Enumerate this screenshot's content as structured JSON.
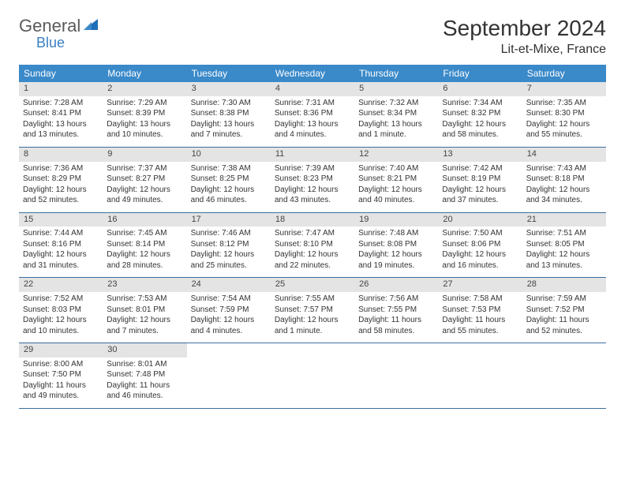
{
  "logo": {
    "main": "General",
    "sub": "Blue"
  },
  "title": "September 2024",
  "location": "Lit-et-Mixe, France",
  "colors": {
    "header_bg": "#3a89c9",
    "header_text": "#ffffff",
    "daynum_bg": "#e4e4e4",
    "text": "#333333",
    "row_border": "#3a6fa0",
    "logo_sub": "#3a7fc4"
  },
  "weekdays": [
    "Sunday",
    "Monday",
    "Tuesday",
    "Wednesday",
    "Thursday",
    "Friday",
    "Saturday"
  ],
  "weeks": [
    [
      {
        "day": "1",
        "sunrise": "Sunrise: 7:28 AM",
        "sunset": "Sunset: 8:41 PM",
        "daylight1": "Daylight: 13 hours",
        "daylight2": "and 13 minutes."
      },
      {
        "day": "2",
        "sunrise": "Sunrise: 7:29 AM",
        "sunset": "Sunset: 8:39 PM",
        "daylight1": "Daylight: 13 hours",
        "daylight2": "and 10 minutes."
      },
      {
        "day": "3",
        "sunrise": "Sunrise: 7:30 AM",
        "sunset": "Sunset: 8:38 PM",
        "daylight1": "Daylight: 13 hours",
        "daylight2": "and 7 minutes."
      },
      {
        "day": "4",
        "sunrise": "Sunrise: 7:31 AM",
        "sunset": "Sunset: 8:36 PM",
        "daylight1": "Daylight: 13 hours",
        "daylight2": "and 4 minutes."
      },
      {
        "day": "5",
        "sunrise": "Sunrise: 7:32 AM",
        "sunset": "Sunset: 8:34 PM",
        "daylight1": "Daylight: 13 hours",
        "daylight2": "and 1 minute."
      },
      {
        "day": "6",
        "sunrise": "Sunrise: 7:34 AM",
        "sunset": "Sunset: 8:32 PM",
        "daylight1": "Daylight: 12 hours",
        "daylight2": "and 58 minutes."
      },
      {
        "day": "7",
        "sunrise": "Sunrise: 7:35 AM",
        "sunset": "Sunset: 8:30 PM",
        "daylight1": "Daylight: 12 hours",
        "daylight2": "and 55 minutes."
      }
    ],
    [
      {
        "day": "8",
        "sunrise": "Sunrise: 7:36 AM",
        "sunset": "Sunset: 8:29 PM",
        "daylight1": "Daylight: 12 hours",
        "daylight2": "and 52 minutes."
      },
      {
        "day": "9",
        "sunrise": "Sunrise: 7:37 AM",
        "sunset": "Sunset: 8:27 PM",
        "daylight1": "Daylight: 12 hours",
        "daylight2": "and 49 minutes."
      },
      {
        "day": "10",
        "sunrise": "Sunrise: 7:38 AM",
        "sunset": "Sunset: 8:25 PM",
        "daylight1": "Daylight: 12 hours",
        "daylight2": "and 46 minutes."
      },
      {
        "day": "11",
        "sunrise": "Sunrise: 7:39 AM",
        "sunset": "Sunset: 8:23 PM",
        "daylight1": "Daylight: 12 hours",
        "daylight2": "and 43 minutes."
      },
      {
        "day": "12",
        "sunrise": "Sunrise: 7:40 AM",
        "sunset": "Sunset: 8:21 PM",
        "daylight1": "Daylight: 12 hours",
        "daylight2": "and 40 minutes."
      },
      {
        "day": "13",
        "sunrise": "Sunrise: 7:42 AM",
        "sunset": "Sunset: 8:19 PM",
        "daylight1": "Daylight: 12 hours",
        "daylight2": "and 37 minutes."
      },
      {
        "day": "14",
        "sunrise": "Sunrise: 7:43 AM",
        "sunset": "Sunset: 8:18 PM",
        "daylight1": "Daylight: 12 hours",
        "daylight2": "and 34 minutes."
      }
    ],
    [
      {
        "day": "15",
        "sunrise": "Sunrise: 7:44 AM",
        "sunset": "Sunset: 8:16 PM",
        "daylight1": "Daylight: 12 hours",
        "daylight2": "and 31 minutes."
      },
      {
        "day": "16",
        "sunrise": "Sunrise: 7:45 AM",
        "sunset": "Sunset: 8:14 PM",
        "daylight1": "Daylight: 12 hours",
        "daylight2": "and 28 minutes."
      },
      {
        "day": "17",
        "sunrise": "Sunrise: 7:46 AM",
        "sunset": "Sunset: 8:12 PM",
        "daylight1": "Daylight: 12 hours",
        "daylight2": "and 25 minutes."
      },
      {
        "day": "18",
        "sunrise": "Sunrise: 7:47 AM",
        "sunset": "Sunset: 8:10 PM",
        "daylight1": "Daylight: 12 hours",
        "daylight2": "and 22 minutes."
      },
      {
        "day": "19",
        "sunrise": "Sunrise: 7:48 AM",
        "sunset": "Sunset: 8:08 PM",
        "daylight1": "Daylight: 12 hours",
        "daylight2": "and 19 minutes."
      },
      {
        "day": "20",
        "sunrise": "Sunrise: 7:50 AM",
        "sunset": "Sunset: 8:06 PM",
        "daylight1": "Daylight: 12 hours",
        "daylight2": "and 16 minutes."
      },
      {
        "day": "21",
        "sunrise": "Sunrise: 7:51 AM",
        "sunset": "Sunset: 8:05 PM",
        "daylight1": "Daylight: 12 hours",
        "daylight2": "and 13 minutes."
      }
    ],
    [
      {
        "day": "22",
        "sunrise": "Sunrise: 7:52 AM",
        "sunset": "Sunset: 8:03 PM",
        "daylight1": "Daylight: 12 hours",
        "daylight2": "and 10 minutes."
      },
      {
        "day": "23",
        "sunrise": "Sunrise: 7:53 AM",
        "sunset": "Sunset: 8:01 PM",
        "daylight1": "Daylight: 12 hours",
        "daylight2": "and 7 minutes."
      },
      {
        "day": "24",
        "sunrise": "Sunrise: 7:54 AM",
        "sunset": "Sunset: 7:59 PM",
        "daylight1": "Daylight: 12 hours",
        "daylight2": "and 4 minutes."
      },
      {
        "day": "25",
        "sunrise": "Sunrise: 7:55 AM",
        "sunset": "Sunset: 7:57 PM",
        "daylight1": "Daylight: 12 hours",
        "daylight2": "and 1 minute."
      },
      {
        "day": "26",
        "sunrise": "Sunrise: 7:56 AM",
        "sunset": "Sunset: 7:55 PM",
        "daylight1": "Daylight: 11 hours",
        "daylight2": "and 58 minutes."
      },
      {
        "day": "27",
        "sunrise": "Sunrise: 7:58 AM",
        "sunset": "Sunset: 7:53 PM",
        "daylight1": "Daylight: 11 hours",
        "daylight2": "and 55 minutes."
      },
      {
        "day": "28",
        "sunrise": "Sunrise: 7:59 AM",
        "sunset": "Sunset: 7:52 PM",
        "daylight1": "Daylight: 11 hours",
        "daylight2": "and 52 minutes."
      }
    ],
    [
      {
        "day": "29",
        "sunrise": "Sunrise: 8:00 AM",
        "sunset": "Sunset: 7:50 PM",
        "daylight1": "Daylight: 11 hours",
        "daylight2": "and 49 minutes."
      },
      {
        "day": "30",
        "sunrise": "Sunrise: 8:01 AM",
        "sunset": "Sunset: 7:48 PM",
        "daylight1": "Daylight: 11 hours",
        "daylight2": "and 46 minutes."
      },
      {
        "empty": true
      },
      {
        "empty": true
      },
      {
        "empty": true
      },
      {
        "empty": true
      },
      {
        "empty": true
      }
    ]
  ]
}
